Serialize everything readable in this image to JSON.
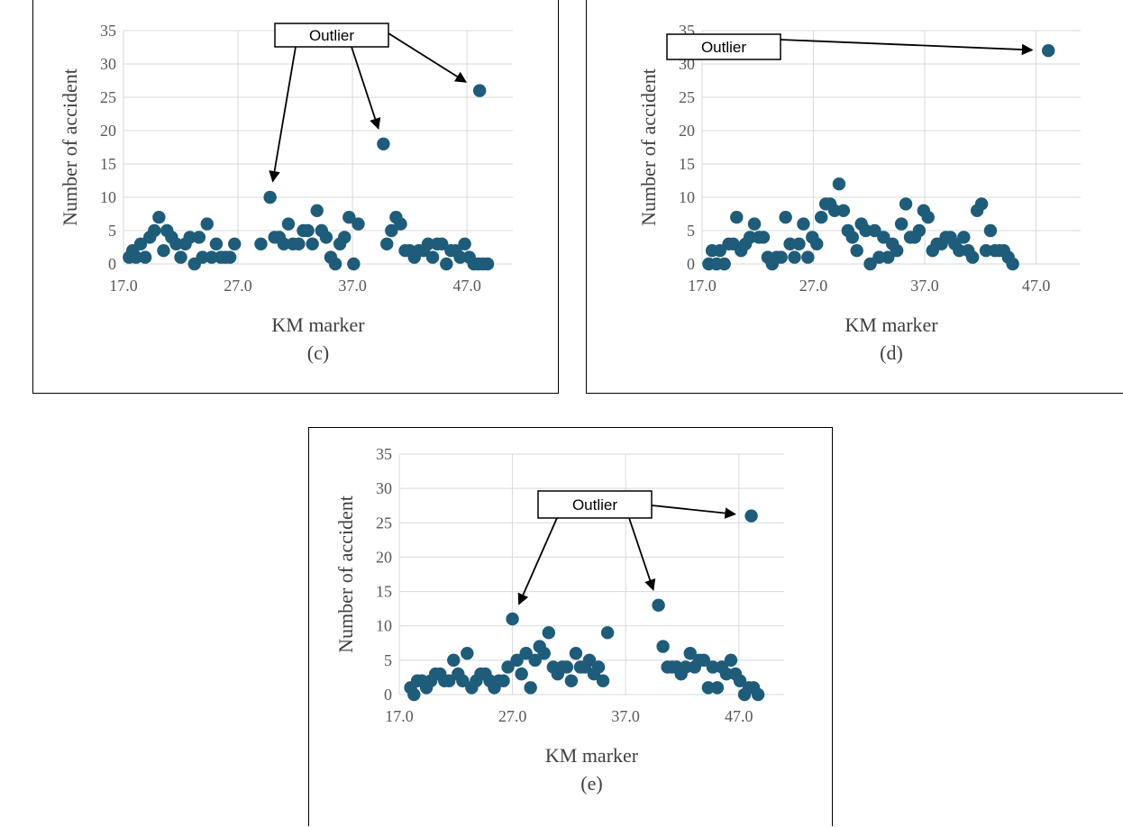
{
  "panels": [
    {
      "id": "c",
      "caption": "(c)",
      "callout": "Outlier",
      "chart_data": {
        "type": "scatter",
        "xlabel": "KM marker",
        "ylabel": "Number of accident",
        "xlim": [
          17,
          51
        ],
        "ylim": [
          0,
          35
        ],
        "xticks": [
          "17.0",
          "27.0",
          "37.0",
          "47.0"
        ],
        "yticks": [
          "0",
          "5",
          "10",
          "15",
          "20",
          "25",
          "30",
          "35"
        ],
        "grid": true,
        "color": "#1e5c7a",
        "outliers": [
          [
            29.8,
            10
          ],
          [
            39.7,
            18
          ],
          [
            48.1,
            26
          ]
        ],
        "points": [
          [
            17.5,
            1
          ],
          [
            17.8,
            2
          ],
          [
            18.1,
            1
          ],
          [
            18.5,
            3
          ],
          [
            18.9,
            1
          ],
          [
            19.3,
            4
          ],
          [
            19.7,
            5
          ],
          [
            20.1,
            7
          ],
          [
            20.5,
            2
          ],
          [
            20.8,
            5
          ],
          [
            21.2,
            4
          ],
          [
            21.6,
            3
          ],
          [
            22.0,
            1
          ],
          [
            22.4,
            3
          ],
          [
            22.8,
            4
          ],
          [
            23.2,
            0
          ],
          [
            23.6,
            4
          ],
          [
            23.9,
            1
          ],
          [
            24.3,
            6
          ],
          [
            24.7,
            1
          ],
          [
            25.1,
            3
          ],
          [
            25.5,
            1
          ],
          [
            25.9,
            1
          ],
          [
            26.3,
            1
          ],
          [
            26.7,
            3
          ],
          [
            29.0,
            3
          ],
          [
            29.8,
            10
          ],
          [
            30.2,
            4
          ],
          [
            30.6,
            4
          ],
          [
            31.0,
            3
          ],
          [
            31.4,
            6
          ],
          [
            31.8,
            3
          ],
          [
            32.3,
            3
          ],
          [
            32.7,
            5
          ],
          [
            33.1,
            5
          ],
          [
            33.5,
            3
          ],
          [
            33.9,
            8
          ],
          [
            34.3,
            5
          ],
          [
            34.7,
            4
          ],
          [
            35.1,
            1
          ],
          [
            35.5,
            0
          ],
          [
            35.9,
            3
          ],
          [
            36.3,
            4
          ],
          [
            36.7,
            7
          ],
          [
            37.1,
            0
          ],
          [
            37.5,
            6
          ],
          [
            39.7,
            18
          ],
          [
            40.0,
            3
          ],
          [
            40.4,
            5
          ],
          [
            40.8,
            7
          ],
          [
            41.2,
            6
          ],
          [
            41.6,
            2
          ],
          [
            42.0,
            2
          ],
          [
            42.4,
            1
          ],
          [
            42.8,
            2
          ],
          [
            43.2,
            2
          ],
          [
            43.6,
            3
          ],
          [
            44.0,
            1
          ],
          [
            44.4,
            3
          ],
          [
            44.8,
            3
          ],
          [
            45.2,
            0
          ],
          [
            45.6,
            2
          ],
          [
            46.0,
            2
          ],
          [
            46.4,
            1
          ],
          [
            46.8,
            3
          ],
          [
            47.2,
            1
          ],
          [
            47.6,
            0
          ],
          [
            48.0,
            0
          ],
          [
            48.4,
            0
          ],
          [
            48.8,
            0
          ],
          [
            48.1,
            26
          ]
        ]
      }
    },
    {
      "id": "d",
      "caption": "(d)",
      "callout": "Outlier",
      "chart_data": {
        "type": "scatter",
        "xlabel": "KM marker",
        "ylabel": "Number of accident",
        "xlim": [
          17,
          51
        ],
        "ylim": [
          0,
          35
        ],
        "xticks": [
          "17.0",
          "27.0",
          "37.0",
          "47.0"
        ],
        "yticks": [
          "0",
          "5",
          "10",
          "15",
          "20",
          "25",
          "30",
          "35"
        ],
        "grid": true,
        "color": "#1e5c7a",
        "outliers": [
          [
            48.1,
            32
          ]
        ],
        "points": [
          [
            17.6,
            0
          ],
          [
            17.9,
            2
          ],
          [
            18.3,
            0
          ],
          [
            18.6,
            2
          ],
          [
            19.0,
            0
          ],
          [
            19.4,
            3
          ],
          [
            19.8,
            3
          ],
          [
            20.1,
            7
          ],
          [
            20.5,
            2
          ],
          [
            20.9,
            3
          ],
          [
            21.3,
            4
          ],
          [
            21.7,
            6
          ],
          [
            22.1,
            4
          ],
          [
            22.5,
            4
          ],
          [
            22.9,
            1
          ],
          [
            23.3,
            0
          ],
          [
            23.7,
            1
          ],
          [
            24.1,
            1
          ],
          [
            24.5,
            7
          ],
          [
            24.9,
            3
          ],
          [
            25.3,
            1
          ],
          [
            25.7,
            3
          ],
          [
            26.1,
            6
          ],
          [
            26.5,
            1
          ],
          [
            26.9,
            4
          ],
          [
            27.3,
            3
          ],
          [
            27.7,
            7
          ],
          [
            28.1,
            9
          ],
          [
            28.5,
            9
          ],
          [
            28.9,
            8
          ],
          [
            29.3,
            12
          ],
          [
            29.7,
            8
          ],
          [
            30.1,
            5
          ],
          [
            30.5,
            4
          ],
          [
            30.9,
            2
          ],
          [
            31.3,
            6
          ],
          [
            31.7,
            5
          ],
          [
            32.1,
            0
          ],
          [
            32.5,
            5
          ],
          [
            32.9,
            1
          ],
          [
            33.3,
            4
          ],
          [
            33.7,
            1
          ],
          [
            34.1,
            3
          ],
          [
            34.5,
            2
          ],
          [
            34.9,
            6
          ],
          [
            35.3,
            9
          ],
          [
            35.7,
            4
          ],
          [
            36.1,
            4
          ],
          [
            36.5,
            5
          ],
          [
            36.9,
            8
          ],
          [
            37.3,
            7
          ],
          [
            37.7,
            2
          ],
          [
            38.1,
            3
          ],
          [
            38.5,
            3
          ],
          [
            38.9,
            4
          ],
          [
            39.3,
            4
          ],
          [
            39.7,
            3
          ],
          [
            40.1,
            2
          ],
          [
            40.5,
            4
          ],
          [
            40.9,
            2
          ],
          [
            41.3,
            1
          ],
          [
            41.7,
            8
          ],
          [
            42.1,
            9
          ],
          [
            42.5,
            2
          ],
          [
            42.9,
            5
          ],
          [
            43.3,
            2
          ],
          [
            43.7,
            2
          ],
          [
            44.1,
            2
          ],
          [
            44.5,
            1
          ],
          [
            44.9,
            0
          ],
          [
            48.1,
            32
          ]
        ]
      }
    },
    {
      "id": "e",
      "caption": "(e)",
      "callout": "Outlier",
      "chart_data": {
        "type": "scatter",
        "xlabel": "KM marker",
        "ylabel": "Number of accident",
        "xlim": [
          17,
          51
        ],
        "ylim": [
          0,
          35
        ],
        "xticks": [
          "17.0",
          "27.0",
          "37.0",
          "47.0"
        ],
        "yticks": [
          "0",
          "5",
          "10",
          "15",
          "20",
          "25",
          "30",
          "35"
        ],
        "grid": true,
        "color": "#1e5c7a",
        "outliers": [
          [
            27.0,
            11
          ],
          [
            39.9,
            13
          ],
          [
            48.1,
            26
          ]
        ],
        "points": [
          [
            18.0,
            1
          ],
          [
            18.3,
            0
          ],
          [
            18.6,
            2
          ],
          [
            19.0,
            2
          ],
          [
            19.4,
            1
          ],
          [
            19.8,
            2
          ],
          [
            20.2,
            3
          ],
          [
            20.6,
            3
          ],
          [
            21.0,
            2
          ],
          [
            21.4,
            2
          ],
          [
            21.8,
            5
          ],
          [
            22.2,
            3
          ],
          [
            22.6,
            2
          ],
          [
            23.0,
            6
          ],
          [
            23.4,
            1
          ],
          [
            23.8,
            2
          ],
          [
            24.2,
            3
          ],
          [
            24.6,
            3
          ],
          [
            25.0,
            2
          ],
          [
            25.4,
            1
          ],
          [
            25.8,
            2
          ],
          [
            26.2,
            2
          ],
          [
            26.6,
            4
          ],
          [
            27.0,
            11
          ],
          [
            27.4,
            5
          ],
          [
            27.8,
            3
          ],
          [
            28.2,
            6
          ],
          [
            28.6,
            1
          ],
          [
            29.0,
            5
          ],
          [
            29.4,
            7
          ],
          [
            29.8,
            6
          ],
          [
            30.2,
            9
          ],
          [
            30.6,
            4
          ],
          [
            31.0,
            3
          ],
          [
            31.4,
            4
          ],
          [
            31.8,
            4
          ],
          [
            32.2,
            2
          ],
          [
            32.6,
            6
          ],
          [
            33.0,
            4
          ],
          [
            33.4,
            4
          ],
          [
            33.8,
            5
          ],
          [
            34.2,
            3
          ],
          [
            34.6,
            4
          ],
          [
            35.0,
            2
          ],
          [
            35.4,
            9
          ],
          [
            39.9,
            13
          ],
          [
            40.3,
            7
          ],
          [
            40.7,
            4
          ],
          [
            41.1,
            4
          ],
          [
            41.5,
            4
          ],
          [
            41.9,
            3
          ],
          [
            42.3,
            4
          ],
          [
            42.7,
            6
          ],
          [
            43.1,
            4
          ],
          [
            43.5,
            5
          ],
          [
            43.9,
            5
          ],
          [
            44.3,
            1
          ],
          [
            44.7,
            4
          ],
          [
            45.1,
            1
          ],
          [
            45.5,
            4
          ],
          [
            45.9,
            3
          ],
          [
            46.3,
            5
          ],
          [
            46.7,
            3
          ],
          [
            47.1,
            2
          ],
          [
            47.5,
            0
          ],
          [
            47.9,
            1
          ],
          [
            48.3,
            1
          ],
          [
            48.7,
            0
          ],
          [
            48.1,
            26
          ]
        ]
      }
    }
  ]
}
